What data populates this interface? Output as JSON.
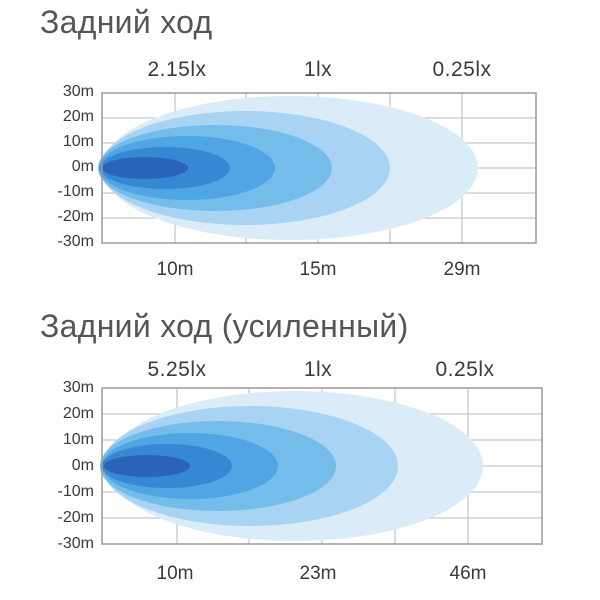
{
  "colors": {
    "grid": "#b8b8b8",
    "frame": "#9a9a9a",
    "zone_1": "#d9ecf8",
    "zone_2": "#a9d3f2",
    "zone_3": "#74bdeb",
    "zone_4": "#4fa6e2",
    "zone_5": "#3788d4",
    "zone_core": "#2b63b8"
  },
  "panels": [
    {
      "title": "Задний ход",
      "lux_labels": [
        "2.15lx",
        "1lx",
        "0.25lx"
      ],
      "y_ticks": [
        "30m",
        "20m",
        "10m",
        "0m",
        "-10m",
        "-20m",
        "-30m"
      ],
      "distance_labels": [
        "10m",
        "15m",
        "29m"
      ]
    },
    {
      "title": "Задний ход (усиленный)",
      "lux_labels": [
        "5.25lx",
        "1lx",
        "0.25lx"
      ],
      "y_ticks": [
        "30m",
        "20m",
        "10m",
        "0m",
        "-10m",
        "-20m",
        "-30m"
      ],
      "distance_labels": [
        "10m",
        "23m",
        "46m"
      ]
    }
  ]
}
